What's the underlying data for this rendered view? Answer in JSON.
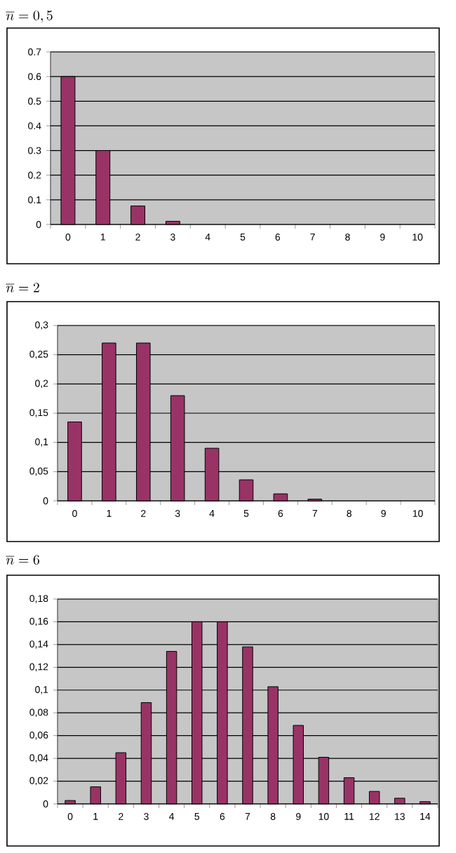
{
  "chart_data": [
    {
      "type": "bar",
      "title": "\\overline{n} = 0,5",
      "categories": [
        "0",
        "1",
        "2",
        "3",
        "4",
        "5",
        "6",
        "7",
        "8",
        "9",
        "10"
      ],
      "values": [
        0.6,
        0.3,
        0.075,
        0.013,
        null,
        null,
        null,
        null,
        null,
        null,
        null
      ],
      "color": "#993366",
      "ylim": [
        0,
        0.7
      ],
      "yticks": [
        0,
        0.1,
        0.2,
        0.3,
        0.4,
        0.5,
        0.6,
        0.7
      ],
      "grid": "y"
    },
    {
      "type": "bar",
      "title": "\\overline{n} = 2",
      "categories": [
        "0",
        "1",
        "2",
        "3",
        "4",
        "5",
        "6",
        "7",
        "8",
        "9",
        "10"
      ],
      "values": [
        0.135,
        0.27,
        0.27,
        0.18,
        0.09,
        0.036,
        0.012,
        0.003,
        null,
        null,
        null
      ],
      "color": "#993366",
      "ylim": [
        0,
        0.3
      ],
      "yticks": [
        0,
        {
          "value": 0.05,
          "label": "0,05"
        },
        {
          "value": 0.1,
          "label": "0,1"
        },
        {
          "value": 0.15,
          "label": "0,15"
        },
        {
          "value": 0.2,
          "label": "0,2"
        },
        {
          "value": 0.25,
          "label": "0,25"
        },
        {
          "value": 0.3,
          "label": "0,3"
        }
      ],
      "grid": "y"
    },
    {
      "type": "bar",
      "title": "\\overline{n} = 6",
      "categories": [
        "0",
        "1",
        "2",
        "3",
        "4",
        "5",
        "6",
        "7",
        "8",
        "9",
        "10",
        "11",
        "12",
        "13",
        "14"
      ],
      "values": [
        0.003,
        0.015,
        0.045,
        0.089,
        0.134,
        0.16,
        0.16,
        0.138,
        0.103,
        0.069,
        0.041,
        0.023,
        0.011,
        0.005,
        0.002
      ],
      "color": "#993366",
      "ylim": [
        0,
        0.18
      ],
      "yticks": [
        0,
        {
          "value": 0.02,
          "label": "0,02"
        },
        {
          "value": 0.04,
          "label": "0,04"
        },
        {
          "value": 0.06,
          "label": "0,06"
        },
        {
          "value": 0.08,
          "label": "0,08"
        },
        {
          "value": 0.1,
          "label": "0,1"
        },
        {
          "value": 0.12,
          "label": "0,12"
        },
        {
          "value": 0.14,
          "label": "0,14"
        },
        {
          "value": 0.16,
          "label": "0,16"
        },
        {
          "value": 0.18,
          "label": "0,18"
        }
      ],
      "grid": "y"
    }
  ]
}
